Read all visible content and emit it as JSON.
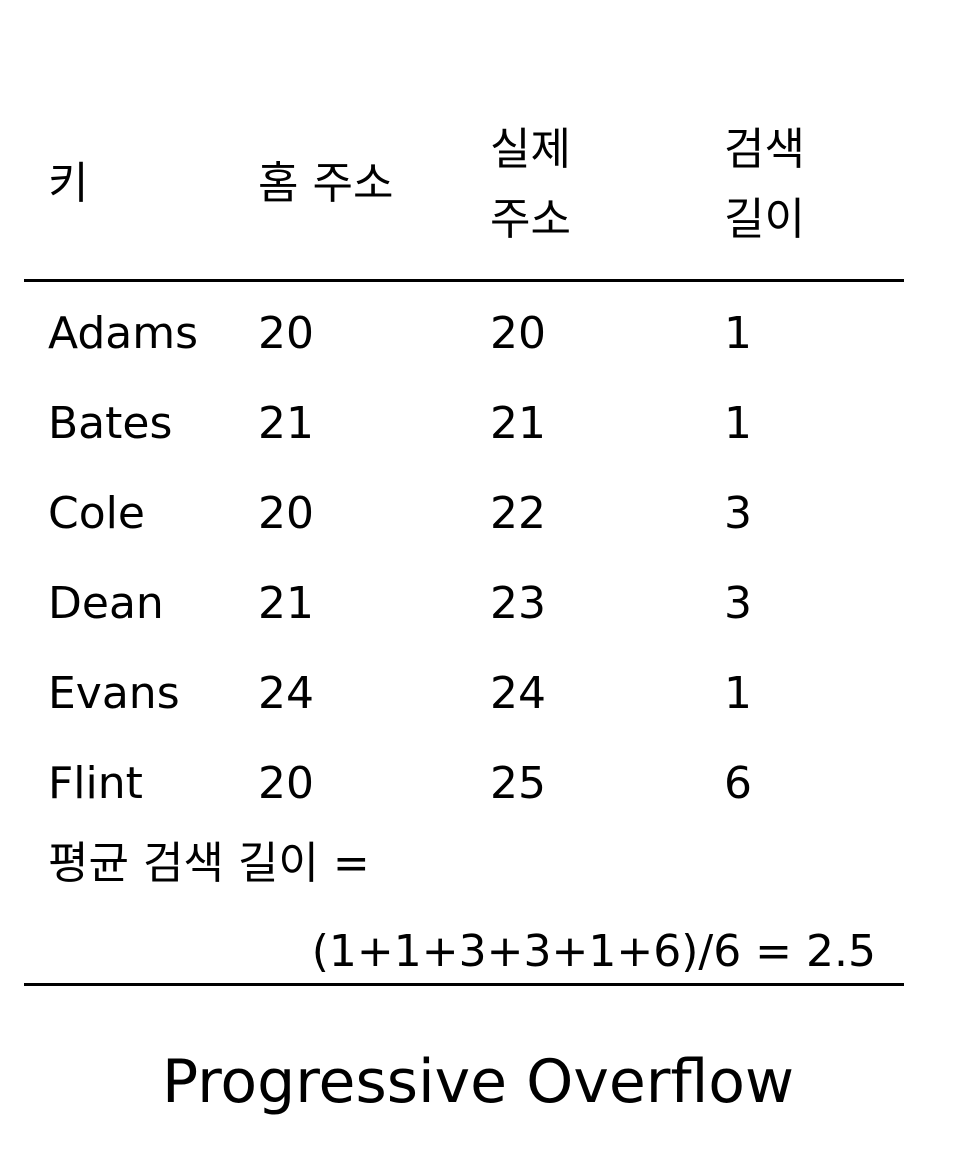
{
  "table": {
    "headers": {
      "key": "키",
      "home_address": "홈 주소",
      "actual_address_line1": "실제",
      "actual_address_line2": "주소",
      "search_length_line1": "검색",
      "search_length_line2": "길이"
    },
    "rows": [
      {
        "key": "Adams",
        "home": "20",
        "actual": "20",
        "length": "1"
      },
      {
        "key": "Bates",
        "home": "21",
        "actual": "21",
        "length": "1"
      },
      {
        "key": "Cole",
        "home": "20",
        "actual": "22",
        "length": "3"
      },
      {
        "key": "Dean",
        "home": "21",
        "actual": "23",
        "length": "3"
      },
      {
        "key": "Evans",
        "home": "24",
        "actual": "24",
        "length": "1"
      },
      {
        "key": "Flint",
        "home": "20",
        "actual": "25",
        "length": "6"
      }
    ],
    "average_label": "평균 검색 길이 =",
    "average_formula": "(1+1+3+3+1+6)/6 = 2.5"
  },
  "caption": "Progressive Overflow"
}
